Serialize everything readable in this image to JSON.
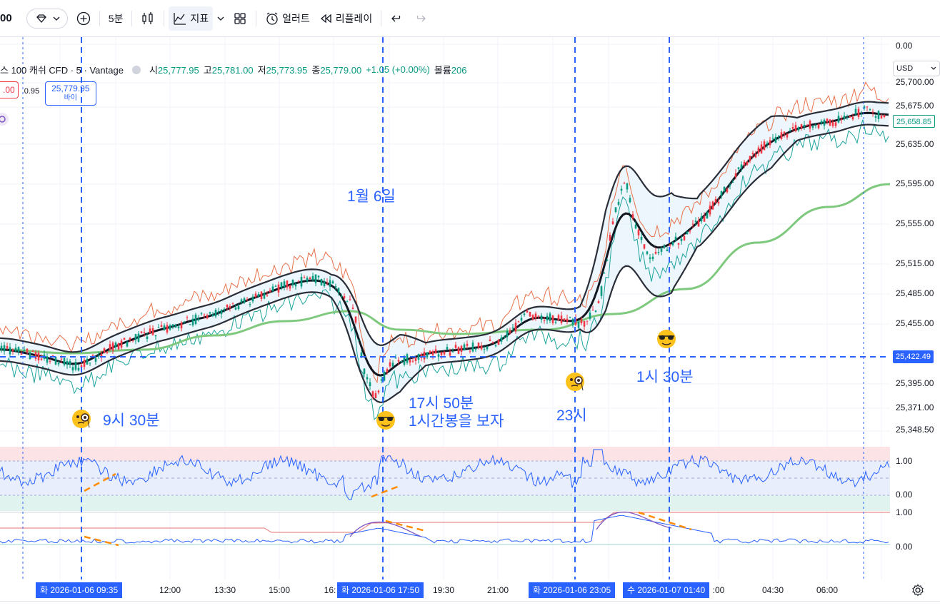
{
  "toolbar": {
    "symbol_code": "00",
    "interval": "5분",
    "indicators": "지표",
    "alert": "얼러트",
    "replay": "리플레이"
  },
  "legend": {
    "title": "스 100 캐쉬 CFD · 5 · Vantage",
    "open_label": "시",
    "open": "25,777.95",
    "high_label": "고",
    "high": "25,781.00",
    "low_label": "저",
    "low": "25,773.95",
    "close_label": "종",
    "close": "25,779.00",
    "change": "+1.05 (+0.00%)",
    "volume_label": "볼륨",
    "volume": "206"
  },
  "trade": {
    "sell_price": ".00",
    "spread": "0.95",
    "buy_price": "25,779.95",
    "buy_label": "바이"
  },
  "currency": "USD",
  "price_axis": [
    "0.00",
    "25,700.00",
    "25,675.00",
    "25,635.00",
    "25,595.00",
    "25,555.00",
    "25,515.00",
    "25,485.00",
    "25,455.00",
    "25,395.00",
    "25,371.00",
    "25,348.50",
    "1.00",
    "0.00",
    "1.00",
    "0.00"
  ],
  "price_flags": {
    "current": "25,658.85",
    "crosshair": "25,422.49"
  },
  "annotations": {
    "date": "1월 6일",
    "t1": "9시 30분",
    "t2a": "17시 50분",
    "t2b": "1시간봉을 보자",
    "t3": "23시",
    "t4": "1시 30분"
  },
  "time_axis": {
    "ticks": [
      "12:00",
      "13:30",
      "15:00",
      "16:",
      "19:30",
      "21:00",
      ":00",
      "04:30",
      "06:00"
    ],
    "flags": [
      "화 2026-01-06   09:35",
      "화 2026-01-06   17:50",
      "화 2026-01-06   23:05",
      "수 2026-01-07   01:40"
    ]
  },
  "colors": {
    "accent": "#2962ff",
    "up": "#089981",
    "down": "#f23645",
    "ma200": "#7fc97f",
    "bollinger": "#2a2e39",
    "envelope": "#e8704a",
    "channel": "#1ba39c",
    "dashed_annotation": "#ff8c00"
  }
}
